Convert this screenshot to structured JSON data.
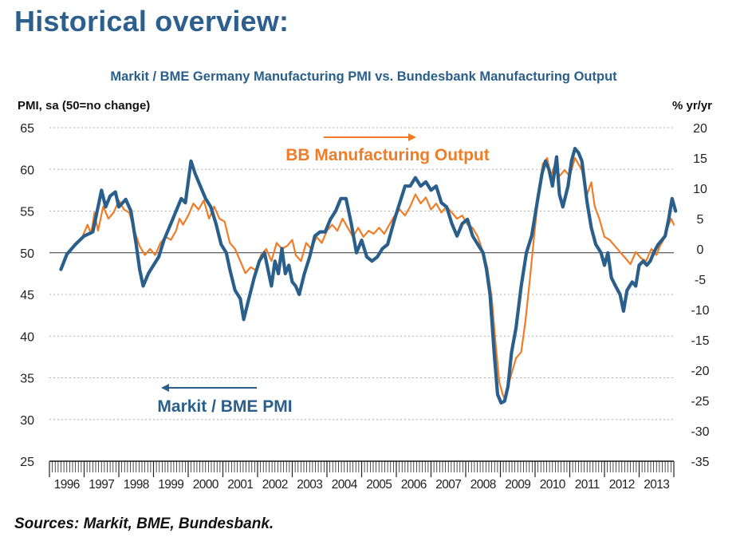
{
  "page": {
    "heading": "Historical overview:",
    "source": "Sources: Markit, BME, Bundesbank."
  },
  "colors": {
    "heading": "#2c5f8d",
    "pmi": "#2a5f8c",
    "output": "#ef7d28",
    "text": "#222222"
  },
  "chart_data": {
    "type": "line",
    "title": "Markit / BME Germany Manufacturing PMI vs. Bundesbank Manufacturing Output",
    "ylabel_left": "PMI, sa (50=no change)",
    "ylabel_right": "% yr/yr",
    "ylim_left": [
      25,
      65
    ],
    "ylim_right": [
      -35,
      20
    ],
    "yticks_left": [
      "65",
      "60",
      "55",
      "50",
      "45",
      "40",
      "35",
      "30",
      "25"
    ],
    "yticks_right": [
      "20",
      "15",
      "10",
      "5",
      "0",
      "-5",
      "-10",
      "-15",
      "-20",
      "-25",
      "-30",
      "-35"
    ],
    "x_ticks": [
      "1996",
      "1997",
      "1998",
      "1999",
      "2000",
      "2001",
      "2002",
      "2003",
      "2004",
      "2005",
      "2006",
      "2007",
      "2008",
      "2009",
      "2010",
      "2011",
      "2012",
      "2013"
    ],
    "xlim": [
      1996.0,
      2014.0
    ],
    "grid": "horizontal dashed",
    "annotations": [
      {
        "text": "BB Manufacturing Output",
        "arrow": "right"
      },
      {
        "text": "Markit / BME PMI",
        "arrow": "left"
      }
    ],
    "series": [
      {
        "name": "Markit / BME PMI",
        "axis": "left",
        "points": [
          [
            1996.33,
            48.0
          ],
          [
            1996.5,
            49.8
          ],
          [
            1996.75,
            51.0
          ],
          [
            1997.0,
            52.0
          ],
          [
            1997.25,
            52.5
          ],
          [
            1997.5,
            57.5
          ],
          [
            1997.62,
            55.5
          ],
          [
            1997.75,
            56.8
          ],
          [
            1997.9,
            57.3
          ],
          [
            1998.0,
            55.5
          ],
          [
            1998.2,
            56.4
          ],
          [
            1998.35,
            55.0
          ],
          [
            1998.5,
            51.0
          ],
          [
            1998.6,
            48.0
          ],
          [
            1998.7,
            46.0
          ],
          [
            1998.85,
            47.5
          ],
          [
            1999.0,
            48.5
          ],
          [
            1999.15,
            49.5
          ],
          [
            1999.3,
            51.5
          ],
          [
            1999.5,
            53.5
          ],
          [
            1999.65,
            55.0
          ],
          [
            1999.8,
            56.5
          ],
          [
            1999.92,
            56.0
          ],
          [
            2000.0,
            58.5
          ],
          [
            2000.08,
            61.0
          ],
          [
            2000.2,
            59.5
          ],
          [
            2000.35,
            58.0
          ],
          [
            2000.5,
            56.5
          ],
          [
            2000.65,
            55.5
          ],
          [
            2000.8,
            53.5
          ],
          [
            2000.95,
            51.0
          ],
          [
            2001.1,
            50.0
          ],
          [
            2001.2,
            48.0
          ],
          [
            2001.35,
            45.5
          ],
          [
            2001.5,
            44.5
          ],
          [
            2001.6,
            42.0
          ],
          [
            2001.75,
            44.5
          ],
          [
            2001.9,
            47.0
          ],
          [
            2002.05,
            49.0
          ],
          [
            2002.2,
            50.0
          ],
          [
            2002.3,
            48.0
          ],
          [
            2002.4,
            46.0
          ],
          [
            2002.5,
            49.0
          ],
          [
            2002.6,
            47.5
          ],
          [
            2002.7,
            50.5
          ],
          [
            2002.8,
            47.5
          ],
          [
            2002.9,
            48.5
          ],
          [
            2003.0,
            46.5
          ],
          [
            2003.1,
            46.0
          ],
          [
            2003.2,
            45.0
          ],
          [
            2003.35,
            47.5
          ],
          [
            2003.5,
            49.5
          ],
          [
            2003.65,
            52.0
          ],
          [
            2003.8,
            52.5
          ],
          [
            2003.95,
            52.5
          ],
          [
            2004.1,
            54.0
          ],
          [
            2004.25,
            55.0
          ],
          [
            2004.4,
            56.5
          ],
          [
            2004.55,
            56.5
          ],
          [
            2004.7,
            53.5
          ],
          [
            2004.85,
            50.0
          ],
          [
            2005.0,
            51.5
          ],
          [
            2005.15,
            49.5
          ],
          [
            2005.3,
            49.0
          ],
          [
            2005.45,
            49.5
          ],
          [
            2005.6,
            50.5
          ],
          [
            2005.75,
            51.0
          ],
          [
            2005.95,
            54.0
          ],
          [
            2006.1,
            56.0
          ],
          [
            2006.25,
            58.0
          ],
          [
            2006.4,
            58.0
          ],
          [
            2006.55,
            59.0
          ],
          [
            2006.7,
            58.0
          ],
          [
            2006.85,
            58.5
          ],
          [
            2007.0,
            57.5
          ],
          [
            2007.15,
            58.0
          ],
          [
            2007.3,
            56.0
          ],
          [
            2007.45,
            55.5
          ],
          [
            2007.6,
            53.5
          ],
          [
            2007.75,
            52.0
          ],
          [
            2007.9,
            53.5
          ],
          [
            2008.05,
            54.0
          ],
          [
            2008.2,
            52.0
          ],
          [
            2008.35,
            51.0
          ],
          [
            2008.5,
            50.0
          ],
          [
            2008.6,
            48.0
          ],
          [
            2008.7,
            45.0
          ],
          [
            2008.82,
            38.0
          ],
          [
            2008.92,
            33.0
          ],
          [
            2009.02,
            32.0
          ],
          [
            2009.12,
            32.2
          ],
          [
            2009.22,
            34.0
          ],
          [
            2009.32,
            38.0
          ],
          [
            2009.45,
            41.0
          ],
          [
            2009.6,
            46.0
          ],
          [
            2009.75,
            50.0
          ],
          [
            2009.9,
            52.0
          ],
          [
            2010.0,
            54.5
          ],
          [
            2010.1,
            57.0
          ],
          [
            2010.2,
            59.5
          ],
          [
            2010.3,
            61.0
          ],
          [
            2010.4,
            60.0
          ],
          [
            2010.5,
            58.0
          ],
          [
            2010.62,
            61.5
          ],
          [
            2010.7,
            57.0
          ],
          [
            2010.8,
            55.5
          ],
          [
            2010.95,
            58.0
          ],
          [
            2011.05,
            61.0
          ],
          [
            2011.15,
            62.5
          ],
          [
            2011.25,
            62.0
          ],
          [
            2011.35,
            61.0
          ],
          [
            2011.5,
            56.0
          ],
          [
            2011.62,
            53.0
          ],
          [
            2011.75,
            51.0
          ],
          [
            2011.9,
            50.0
          ],
          [
            2012.0,
            48.5
          ],
          [
            2012.1,
            50.0
          ],
          [
            2012.2,
            47.0
          ],
          [
            2012.32,
            46.0
          ],
          [
            2012.45,
            45.0
          ],
          [
            2012.55,
            43.0
          ],
          [
            2012.65,
            45.5
          ],
          [
            2012.8,
            46.5
          ],
          [
            2012.9,
            46.0
          ],
          [
            2013.0,
            48.5
          ],
          [
            2013.12,
            49.0
          ],
          [
            2013.22,
            48.5
          ],
          [
            2013.32,
            49.0
          ],
          [
            2013.42,
            50.0
          ],
          [
            2013.55,
            51.0
          ],
          [
            2013.65,
            51.5
          ],
          [
            2013.75,
            52.0
          ],
          [
            2013.85,
            54.0
          ],
          [
            2013.95,
            56.5
          ],
          [
            2014.05,
            55.0
          ]
        ]
      },
      {
        "name": "BB Manufacturing Output",
        "axis": "right",
        "points": [
          [
            1996.95,
            2.0
          ],
          [
            1997.1,
            4.0
          ],
          [
            1997.2,
            2.5
          ],
          [
            1997.3,
            6.0
          ],
          [
            1997.4,
            3.0
          ],
          [
            1997.55,
            7.0
          ],
          [
            1997.7,
            5.0
          ],
          [
            1997.85,
            6.0
          ],
          [
            1998.0,
            8.0
          ],
          [
            1998.15,
            6.5
          ],
          [
            1998.3,
            6.0
          ],
          [
            1998.45,
            3.0
          ],
          [
            1998.6,
            0.5
          ],
          [
            1998.75,
            -1.0
          ],
          [
            1998.9,
            0.0
          ],
          [
            1999.05,
            -1.0
          ],
          [
            1999.2,
            1.0
          ],
          [
            1999.35,
            2.0
          ],
          [
            1999.5,
            1.5
          ],
          [
            1999.65,
            3.0
          ],
          [
            1999.75,
            5.0
          ],
          [
            1999.85,
            4.0
          ],
          [
            2000.0,
            5.5
          ],
          [
            2000.15,
            7.5
          ],
          [
            2000.3,
            6.5
          ],
          [
            2000.45,
            8.0
          ],
          [
            2000.6,
            5.0
          ],
          [
            2000.75,
            7.0
          ],
          [
            2000.9,
            5.0
          ],
          [
            2001.05,
            4.5
          ],
          [
            2001.2,
            1.0
          ],
          [
            2001.35,
            0.0
          ],
          [
            2001.5,
            -2.0
          ],
          [
            2001.65,
            -4.0
          ],
          [
            2001.8,
            -3.0
          ],
          [
            2001.95,
            -3.5
          ],
          [
            2002.1,
            -1.0
          ],
          [
            2002.25,
            0.0
          ],
          [
            2002.4,
            -2.0
          ],
          [
            2002.55,
            1.0
          ],
          [
            2002.7,
            0.0
          ],
          [
            2002.85,
            0.5
          ],
          [
            2003.0,
            1.5
          ],
          [
            2003.1,
            -1.0
          ],
          [
            2003.25,
            -2.0
          ],
          [
            2003.4,
            1.0
          ],
          [
            2003.55,
            0.0
          ],
          [
            2003.7,
            2.0
          ],
          [
            2003.85,
            1.0
          ],
          [
            2004.0,
            3.0
          ],
          [
            2004.15,
            4.0
          ],
          [
            2004.3,
            3.0
          ],
          [
            2004.45,
            5.0
          ],
          [
            2004.6,
            3.5
          ],
          [
            2004.75,
            2.0
          ],
          [
            2004.9,
            3.5
          ],
          [
            2005.05,
            2.0
          ],
          [
            2005.2,
            3.0
          ],
          [
            2005.35,
            2.5
          ],
          [
            2005.5,
            3.5
          ],
          [
            2005.65,
            2.5
          ],
          [
            2005.8,
            4.0
          ],
          [
            2005.95,
            5.5
          ],
          [
            2006.1,
            6.5
          ],
          [
            2006.25,
            5.5
          ],
          [
            2006.4,
            7.0
          ],
          [
            2006.55,
            9.0
          ],
          [
            2006.7,
            7.5
          ],
          [
            2006.85,
            8.5
          ],
          [
            2007.0,
            6.5
          ],
          [
            2007.15,
            7.5
          ],
          [
            2007.3,
            6.0
          ],
          [
            2007.45,
            7.0
          ],
          [
            2007.6,
            6.0
          ],
          [
            2007.75,
            5.0
          ],
          [
            2007.9,
            5.5
          ],
          [
            2008.05,
            4.0
          ],
          [
            2008.2,
            3.5
          ],
          [
            2008.35,
            2.0
          ],
          [
            2008.5,
            -0.5
          ],
          [
            2008.62,
            -3.0
          ],
          [
            2008.75,
            -8.0
          ],
          [
            2008.87,
            -16.0
          ],
          [
            2008.97,
            -22.0
          ],
          [
            2009.07,
            -24.0
          ],
          [
            2009.15,
            -25.0
          ],
          [
            2009.25,
            -22.0
          ],
          [
            2009.35,
            -20.0
          ],
          [
            2009.45,
            -18.0
          ],
          [
            2009.6,
            -17.0
          ],
          [
            2009.72,
            -12.0
          ],
          [
            2009.85,
            -5.0
          ],
          [
            2009.97,
            2.0
          ],
          [
            2010.1,
            9.0
          ],
          [
            2010.22,
            14.0
          ],
          [
            2010.35,
            15.0
          ],
          [
            2010.45,
            12.0
          ],
          [
            2010.58,
            14.0
          ],
          [
            2010.7,
            12.0
          ],
          [
            2010.85,
            13.0
          ],
          [
            2011.0,
            12.0
          ],
          [
            2011.15,
            15.0
          ],
          [
            2011.25,
            14.0
          ],
          [
            2011.35,
            13.0
          ],
          [
            2011.5,
            9.0
          ],
          [
            2011.62,
            11.0
          ],
          [
            2011.72,
            7.0
          ],
          [
            2011.85,
            5.0
          ],
          [
            2012.0,
            2.0
          ],
          [
            2012.15,
            1.5
          ],
          [
            2012.3,
            0.5
          ],
          [
            2012.45,
            -0.5
          ],
          [
            2012.6,
            -1.5
          ],
          [
            2012.75,
            -2.5
          ],
          [
            2012.9,
            -0.5
          ],
          [
            2013.05,
            -1.5
          ],
          [
            2013.2,
            -2.0
          ],
          [
            2013.35,
            0.0
          ],
          [
            2013.5,
            -1.0
          ],
          [
            2013.6,
            0.5
          ],
          [
            2013.7,
            1.5
          ],
          [
            2013.82,
            3.5
          ],
          [
            2013.92,
            5.0
          ],
          [
            2014.0,
            4.0
          ]
        ]
      }
    ]
  }
}
